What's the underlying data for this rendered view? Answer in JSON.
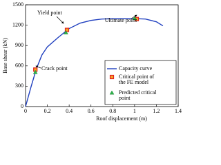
{
  "chart_data": {
    "type": "line",
    "x_label": "Roof displacement (m)",
    "y_label": "Base shear (kN)",
    "xlim": [
      0,
      1.4
    ],
    "xticks": [
      0,
      0.2,
      0.4,
      0.6,
      0.8,
      1,
      1.2,
      1.4
    ],
    "ylim": [
      0,
      1500
    ],
    "yticks": [
      0,
      300,
      600,
      900,
      1200,
      1500
    ],
    "legend": "lower right",
    "series": [
      {
        "name": "Capacity curve",
        "type": "line",
        "color": "#1f3fbf",
        "x": [
          0,
          0.05,
          0.1,
          0.15,
          0.2,
          0.3,
          0.4,
          0.5,
          0.6,
          0.7,
          0.8,
          0.9,
          1,
          1.1,
          1.2,
          1.26
        ],
        "values": [
          0,
          290,
          560,
          760,
          880,
          1020,
          1150,
          1230,
          1270,
          1290,
          1295,
          1297,
          1297,
          1290,
          1250,
          1190
        ]
      },
      {
        "name": "Critical point of the FE model",
        "type": "scatter",
        "marker": "square",
        "color": "#e02020",
        "x": [
          0.09,
          0.38,
          1.02
        ],
        "values": [
          545,
          1130,
          1290
        ]
      },
      {
        "name": "Predicted critical point",
        "type": "scatter",
        "marker": "triangle",
        "color": "#2db34a",
        "x": [
          0.09,
          0.37,
          1
        ],
        "values": [
          505,
          1090,
          1300
        ]
      }
    ],
    "annotations": [
      "Yield point",
      "Crack point",
      "Ultimate point"
    ]
  }
}
